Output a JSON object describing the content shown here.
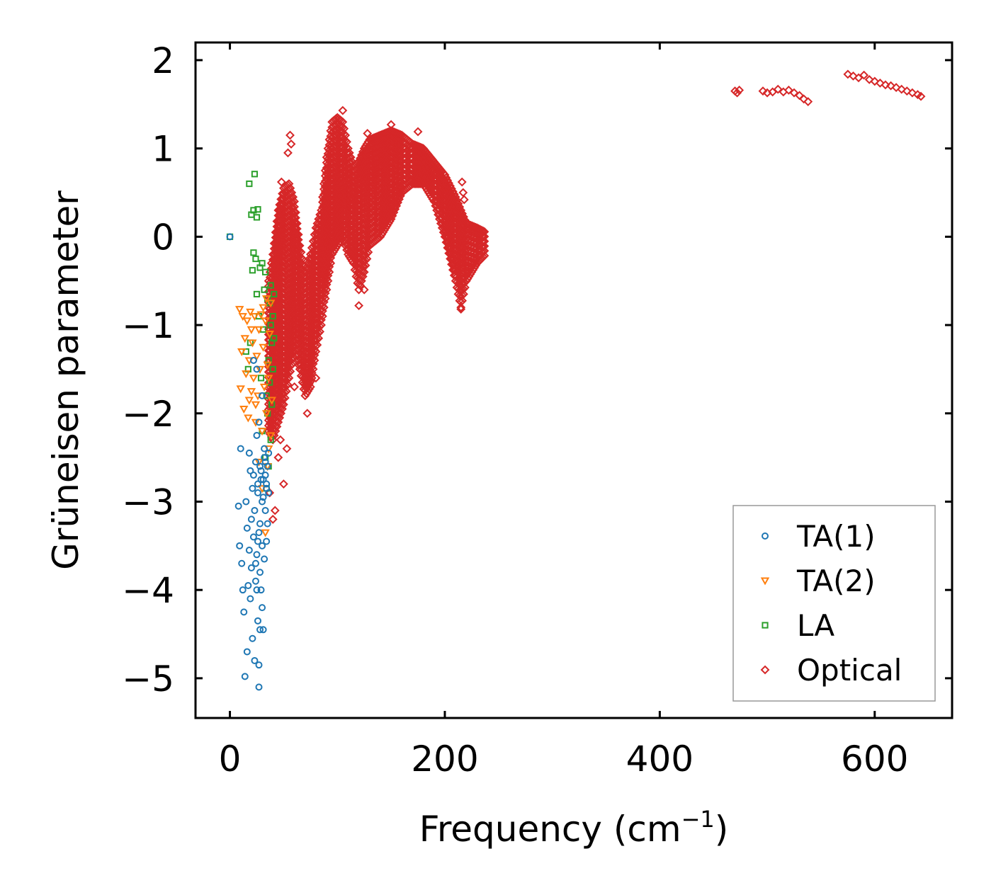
{
  "chart_data": {
    "type": "scatter",
    "title": "",
    "xlabel": "Frequency (cm",
    "xlabel_superscript": "−1",
    "xlabel_suffix": ")",
    "ylabel": "Grüneisen parameter",
    "xlim": [
      -32,
      672
    ],
    "ylim": [
      -5.45,
      2.2
    ],
    "x_ticks": [
      0,
      200,
      400,
      600
    ],
    "x_tick_labels": [
      "0",
      "200",
      "400",
      "600"
    ],
    "y_ticks": [
      2,
      1,
      0,
      -1,
      -2,
      -3,
      -4,
      -5
    ],
    "y_tick_labels": [
      "2",
      "1",
      "0",
      "−1",
      "−2",
      "−3",
      "−4",
      "−5"
    ],
    "grid": false,
    "legend_position": "bottom-right",
    "series": [
      {
        "name": "TA(1)",
        "color": "#1f77b4",
        "marker": "circle",
        "points": [
          [
            0,
            0
          ],
          [
            8,
            -3.05
          ],
          [
            9,
            -3.5
          ],
          [
            10,
            -2.4
          ],
          [
            11,
            -3.7
          ],
          [
            12,
            -4.0
          ],
          [
            13,
            -4.25
          ],
          [
            14,
            -4.98
          ],
          [
            15,
            -3.0
          ],
          [
            16,
            -4.7
          ],
          [
            16,
            -3.3
          ],
          [
            17,
            -3.95
          ],
          [
            18,
            -2.45
          ],
          [
            18,
            -3.55
          ],
          [
            19,
            -2.65
          ],
          [
            19,
            -4.1
          ],
          [
            20,
            -3.2
          ],
          [
            20,
            -3.75
          ],
          [
            21,
            -2.85
          ],
          [
            21,
            -4.55
          ],
          [
            22,
            -2.7
          ],
          [
            22,
            -3.4
          ],
          [
            23,
            -4.8
          ],
          [
            23,
            -3.1
          ],
          [
            24,
            -2.55
          ],
          [
            24,
            -3.9
          ],
          [
            25,
            -2.25
          ],
          [
            25,
            -3.6
          ],
          [
            26,
            -4.35
          ],
          [
            26,
            -2.9
          ],
          [
            27,
            -3.35
          ],
          [
            27,
            -4.85
          ],
          [
            27,
            -5.1
          ],
          [
            28,
            -2.6
          ],
          [
            28,
            -4.45
          ],
          [
            28,
            -3.8
          ],
          [
            29,
            -4.0
          ],
          [
            29,
            -2.75
          ],
          [
            30,
            -3.5
          ],
          [
            30,
            -4.2
          ],
          [
            31,
            -2.95
          ],
          [
            31,
            -4.45
          ],
          [
            32,
            -3.65
          ],
          [
            32,
            -2.5
          ],
          [
            33,
            -3.1
          ],
          [
            33,
            -2.7
          ],
          [
            34,
            -2.8
          ],
          [
            34,
            -3.45
          ],
          [
            35,
            -2.6
          ],
          [
            36,
            -2.9
          ],
          [
            35,
            -3.25
          ],
          [
            25,
            -1.5
          ],
          [
            22,
            -1.4
          ],
          [
            30,
            -1.8
          ],
          [
            27,
            -2.1
          ],
          [
            26,
            -2.8
          ],
          [
            29,
            -2.65
          ],
          [
            31,
            -2.75
          ],
          [
            30,
            -3.0
          ],
          [
            32,
            -2.4
          ],
          [
            33,
            -2.55
          ],
          [
            34,
            -2.85
          ],
          [
            36,
            -2.45
          ],
          [
            28,
            -3.25
          ],
          [
            26,
            -3.45
          ],
          [
            24,
            -3.7
          ],
          [
            25,
            -4.0
          ]
        ]
      },
      {
        "name": "TA(2)",
        "color": "#ff7f0e",
        "marker": "triangle-down",
        "points": [
          [
            9,
            -0.82
          ],
          [
            10,
            -1.72
          ],
          [
            11,
            -1.3
          ],
          [
            12,
            -0.9
          ],
          [
            13,
            -1.95
          ],
          [
            14,
            -1.15
          ],
          [
            15,
            -1.55
          ],
          [
            16,
            -0.95
          ],
          [
            17,
            -2.05
          ],
          [
            18,
            -1.4
          ],
          [
            19,
            -0.85
          ],
          [
            20,
            -1.75
          ],
          [
            21,
            -1.2
          ],
          [
            22,
            -1.6
          ],
          [
            23,
            -0.9
          ],
          [
            24,
            -2.1
          ],
          [
            25,
            -1.35
          ],
          [
            26,
            -1.8
          ],
          [
            27,
            -1.05
          ],
          [
            28,
            -1.5
          ],
          [
            29,
            -0.88
          ],
          [
            30,
            -2.2
          ],
          [
            31,
            -1.25
          ],
          [
            32,
            -1.7
          ],
          [
            33,
            -0.95
          ],
          [
            34,
            -2.0
          ],
          [
            35,
            -1.45
          ],
          [
            36,
            -2.4
          ],
          [
            37,
            -1.1
          ],
          [
            38,
            -0.75
          ],
          [
            39,
            -1.85
          ],
          [
            35,
            -2.6
          ],
          [
            33,
            -3.35
          ],
          [
            30,
            -2.85
          ],
          [
            27,
            -2.55
          ],
          [
            31,
            -0.8
          ],
          [
            24,
            -1.9
          ],
          [
            20,
            -1.05
          ],
          [
            18,
            -1.85
          ],
          [
            36,
            -1.6
          ],
          [
            38,
            -2.25
          ],
          [
            34,
            -0.7
          ]
        ]
      },
      {
        "name": "LA",
        "color": "#2ca02c",
        "marker": "square",
        "points": [
          [
            0,
            0
          ],
          [
            18,
            0.6
          ],
          [
            22,
            0.3
          ],
          [
            23,
            0.71
          ],
          [
            25,
            0.22
          ],
          [
            26,
            0.31
          ],
          [
            20,
            0.25
          ],
          [
            22,
            -0.18
          ],
          [
            24,
            -0.25
          ],
          [
            21,
            -0.38
          ],
          [
            28,
            -0.35
          ],
          [
            30,
            -0.3
          ],
          [
            32,
            -0.6
          ],
          [
            33,
            -0.4
          ],
          [
            35,
            -0.7
          ],
          [
            37,
            -0.75
          ],
          [
            38,
            -1.0
          ],
          [
            39,
            -1.2
          ],
          [
            36,
            -1.4
          ],
          [
            40,
            -0.9
          ],
          [
            41,
            -1.15
          ],
          [
            37,
            -1.65
          ],
          [
            39,
            -1.9
          ],
          [
            38,
            -2.3
          ],
          [
            36,
            -2.6
          ],
          [
            34,
            -2.85
          ],
          [
            33,
            -2.5
          ],
          [
            15,
            -1.3
          ],
          [
            17,
            -1.5
          ],
          [
            19,
            -1.2
          ],
          [
            25,
            -0.65
          ],
          [
            27,
            -0.9
          ],
          [
            29,
            -1.6
          ],
          [
            31,
            -1.05
          ],
          [
            35,
            -2.0
          ],
          [
            40,
            -1.5
          ],
          [
            41,
            -0.65
          ],
          [
            38,
            -0.55
          ],
          [
            34,
            -1.8
          ],
          [
            30,
            -2.2
          ]
        ]
      },
      {
        "name": "Optical",
        "color": "#d62728",
        "marker": "diamond",
        "bands": [
          [
            36,
            -2.2,
            -0.5
          ],
          [
            40,
            -2.3,
            -0.2
          ],
          [
            45,
            -2.1,
            0.3
          ],
          [
            50,
            -1.9,
            0.55
          ],
          [
            55,
            -1.6,
            0.6
          ],
          [
            60,
            -1.3,
            0.4
          ],
          [
            65,
            -1.5,
            -0.1
          ],
          [
            70,
            -1.8,
            -0.4
          ],
          [
            75,
            -1.7,
            -0.2
          ],
          [
            80,
            -1.3,
            0.1
          ],
          [
            85,
            -1.0,
            0.3
          ],
          [
            90,
            -0.6,
            0.9
          ],
          [
            95,
            -0.2,
            1.3
          ],
          [
            100,
            -0.1,
            1.35
          ],
          [
            105,
            0.0,
            1.3
          ],
          [
            110,
            -0.2,
            1.0
          ],
          [
            115,
            -0.3,
            0.8
          ],
          [
            120,
            -0.6,
            0.85
          ],
          [
            125,
            -0.4,
            1.0
          ],
          [
            130,
            -0.1,
            1.1
          ],
          [
            140,
            0.0,
            1.15
          ],
          [
            150,
            0.2,
            1.2
          ],
          [
            160,
            0.5,
            1.15
          ],
          [
            170,
            0.6,
            1.05
          ],
          [
            180,
            0.6,
            1.0
          ],
          [
            190,
            0.4,
            0.85
          ],
          [
            200,
            0.0,
            0.7
          ],
          [
            210,
            -0.5,
            0.45
          ],
          [
            215,
            -0.8,
            0.3
          ],
          [
            220,
            -0.5,
            0.15
          ],
          [
            230,
            -0.3,
            0.1
          ],
          [
            238,
            -0.2,
            0.05
          ]
        ],
        "points": [
          [
            56,
            1.15
          ],
          [
            57,
            1.05
          ],
          [
            54,
            0.95
          ],
          [
            48,
            0.62
          ],
          [
            52,
            0.5
          ],
          [
            105,
            1.43
          ],
          [
            128,
            1.17
          ],
          [
            150,
            1.27
          ],
          [
            175,
            1.19
          ],
          [
            186,
            0.85
          ],
          [
            216,
            0.62
          ],
          [
            217,
            0.5
          ],
          [
            218,
            0.42
          ],
          [
            215,
            -0.82
          ],
          [
            120,
            -0.78
          ],
          [
            125,
            -0.6
          ],
          [
            72,
            -2.0
          ],
          [
            50,
            -2.8
          ],
          [
            42,
            -3.1
          ],
          [
            40,
            -3.2
          ],
          [
            45,
            -2.5
          ],
          [
            37,
            -2.9
          ],
          [
            60,
            -1.7
          ],
          [
            80,
            -1.6
          ],
          [
            47,
            -2.3
          ],
          [
            53,
            -2.4
          ],
          [
            64,
            -1.1
          ],
          [
            470,
            1.65
          ],
          [
            472,
            1.63
          ],
          [
            474,
            1.66
          ],
          [
            496,
            1.65
          ],
          [
            500,
            1.63
          ],
          [
            505,
            1.64
          ],
          [
            510,
            1.67
          ],
          [
            515,
            1.64
          ],
          [
            520,
            1.66
          ],
          [
            525,
            1.63
          ],
          [
            530,
            1.6
          ],
          [
            534,
            1.56
          ],
          [
            538,
            1.53
          ],
          [
            575,
            1.84
          ],
          [
            580,
            1.82
          ],
          [
            585,
            1.8
          ],
          [
            590,
            1.83
          ],
          [
            595,
            1.78
          ],
          [
            600,
            1.76
          ],
          [
            605,
            1.74
          ],
          [
            610,
            1.72
          ],
          [
            615,
            1.71
          ],
          [
            620,
            1.69
          ],
          [
            625,
            1.67
          ],
          [
            630,
            1.65
          ],
          [
            635,
            1.63
          ],
          [
            640,
            1.61
          ],
          [
            643,
            1.59
          ]
        ]
      }
    ]
  }
}
